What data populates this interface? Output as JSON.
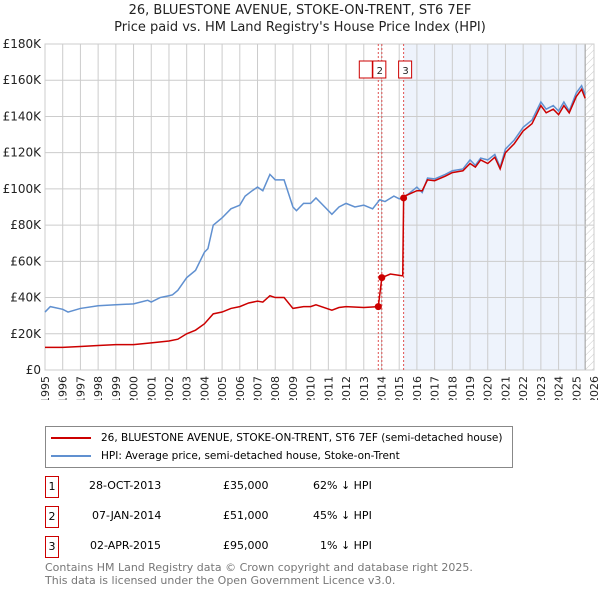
{
  "title": "26, BLUESTONE AVENUE, STOKE-ON-TRENT, ST6 7EF",
  "subtitle": "Price paid vs. HM Land Registry's House Price Index (HPI)",
  "colors": {
    "property": "#cc0000",
    "hpi": "#6090d0",
    "shade": "#eef3fc"
  },
  "chart_data": {
    "type": "line",
    "xlim": [
      1995,
      2026
    ],
    "ylim": [
      0,
      180000
    ],
    "yticks": [
      {
        "v": 0,
        "label": "£0"
      },
      {
        "v": 20000,
        "label": "£20K"
      },
      {
        "v": 40000,
        "label": "£40K"
      },
      {
        "v": 60000,
        "label": "£60K"
      },
      {
        "v": 80000,
        "label": "£80K"
      },
      {
        "v": 100000,
        "label": "£100K"
      },
      {
        "v": 120000,
        "label": "£120K"
      },
      {
        "v": 140000,
        "label": "£140K"
      },
      {
        "v": 160000,
        "label": "£160K"
      },
      {
        "v": 180000,
        "label": "£180K"
      }
    ],
    "xticks": [
      "1995",
      "1996",
      "1997",
      "1998",
      "1999",
      "2000",
      "2001",
      "2002",
      "2003",
      "2004",
      "2005",
      "2006",
      "2007",
      "2008",
      "2009",
      "2010",
      "2011",
      "2012",
      "2013",
      "2014",
      "2015",
      "2016",
      "2017",
      "2018",
      "2019",
      "2020",
      "2021",
      "2022",
      "2023",
      "2024",
      "2025",
      "2026"
    ],
    "shaded_from": 2015.25,
    "hatched_from": 2025.5,
    "series": [
      {
        "name": "HPI: Average price, semi-detached house, Stoke-on-Trent",
        "color": "#6090d0",
        "points": [
          [
            1995,
            32
          ],
          [
            1995.3,
            35
          ],
          [
            1996,
            33.5
          ],
          [
            1996.3,
            32
          ],
          [
            1997,
            34
          ],
          [
            1998,
            35.5
          ],
          [
            1999,
            36
          ],
          [
            2000,
            36.5
          ],
          [
            2000.8,
            38.5
          ],
          [
            2001,
            37.5
          ],
          [
            2001.5,
            40
          ],
          [
            2002,
            41
          ],
          [
            2002.2,
            41.5
          ],
          [
            2002.5,
            44
          ],
          [
            2003,
            51
          ],
          [
            2003.5,
            55
          ],
          [
            2004,
            65
          ],
          [
            2004.2,
            67
          ],
          [
            2004.5,
            80
          ],
          [
            2005,
            84
          ],
          [
            2005.5,
            89
          ],
          [
            2006,
            91
          ],
          [
            2006.3,
            96
          ],
          [
            2006.7,
            99
          ],
          [
            2007,
            101
          ],
          [
            2007.3,
            99
          ],
          [
            2007.7,
            108
          ],
          [
            2008,
            105
          ],
          [
            2008.5,
            105
          ],
          [
            2009,
            90
          ],
          [
            2009.2,
            88
          ],
          [
            2009.6,
            92
          ],
          [
            2010,
            92
          ],
          [
            2010.3,
            95
          ],
          [
            2010.8,
            90
          ],
          [
            2011.2,
            86
          ],
          [
            2011.6,
            90
          ],
          [
            2012,
            92
          ],
          [
            2012.5,
            90
          ],
          [
            2013,
            91
          ],
          [
            2013.5,
            89
          ],
          [
            2013.9,
            94
          ],
          [
            2014.2,
            93
          ],
          [
            2014.7,
            96
          ],
          [
            2015,
            94.5
          ],
          [
            2015.3,
            95.5
          ],
          [
            2016,
            101
          ],
          [
            2016.3,
            98
          ],
          [
            2016.6,
            106
          ],
          [
            2017,
            105.5
          ],
          [
            2017.6,
            108
          ],
          [
            2018,
            110
          ],
          [
            2018.6,
            111
          ],
          [
            2019,
            116
          ],
          [
            2019.3,
            113
          ],
          [
            2019.6,
            117
          ],
          [
            2020,
            116
          ],
          [
            2020.4,
            119
          ],
          [
            2020.7,
            112
          ],
          [
            2021,
            122
          ],
          [
            2021.5,
            127
          ],
          [
            2022,
            134
          ],
          [
            2022.5,
            138
          ],
          [
            2023,
            148
          ],
          [
            2023.3,
            144
          ],
          [
            2023.7,
            146
          ],
          [
            2024,
            143
          ],
          [
            2024.3,
            148
          ],
          [
            2024.6,
            143
          ],
          [
            2025,
            153
          ],
          [
            2025.3,
            157
          ],
          [
            2025.5,
            152
          ]
        ]
      },
      {
        "name": "26, BLUESTONE AVENUE, STOKE-ON-TRENT, ST6 7EF (semi-detached house)",
        "color": "#cc0000",
        "points": [
          [
            1995,
            12.5
          ],
          [
            1996,
            12.5
          ],
          [
            1997,
            13
          ],
          [
            1998,
            13.5
          ],
          [
            1999,
            14
          ],
          [
            2000,
            14
          ],
          [
            2001,
            15
          ],
          [
            2002,
            16
          ],
          [
            2002.5,
            17
          ],
          [
            2003,
            20
          ],
          [
            2003.5,
            22
          ],
          [
            2004,
            25.5
          ],
          [
            2004.5,
            31
          ],
          [
            2005,
            32
          ],
          [
            2005.5,
            34
          ],
          [
            2006,
            35
          ],
          [
            2006.5,
            37
          ],
          [
            2007,
            38
          ],
          [
            2007.3,
            37.5
          ],
          [
            2007.7,
            41
          ],
          [
            2008,
            40
          ],
          [
            2008.5,
            40
          ],
          [
            2009,
            34
          ],
          [
            2009.6,
            35
          ],
          [
            2010,
            35
          ],
          [
            2010.3,
            36
          ],
          [
            2011.2,
            33
          ],
          [
            2011.6,
            34.5
          ],
          [
            2012,
            35
          ],
          [
            2013,
            34.5
          ],
          [
            2013.82,
            35
          ],
          [
            2014.02,
            51
          ],
          [
            2014.5,
            53
          ],
          [
            2015.2,
            52
          ],
          [
            2015.25,
            95
          ],
          [
            2015.3,
            96
          ],
          [
            2016,
            99
          ],
          [
            2016.3,
            99
          ],
          [
            2016.6,
            105
          ],
          [
            2017,
            104.5
          ],
          [
            2017.6,
            107
          ],
          [
            2018,
            109
          ],
          [
            2018.6,
            110
          ],
          [
            2019,
            114
          ],
          [
            2019.3,
            112
          ],
          [
            2019.6,
            116
          ],
          [
            2020,
            114
          ],
          [
            2020.4,
            117.5
          ],
          [
            2020.7,
            111
          ],
          [
            2021,
            120
          ],
          [
            2021.5,
            125
          ],
          [
            2022,
            132
          ],
          [
            2022.5,
            136
          ],
          [
            2023,
            146
          ],
          [
            2023.3,
            142
          ],
          [
            2023.7,
            144
          ],
          [
            2024,
            141
          ],
          [
            2024.3,
            146
          ],
          [
            2024.6,
            142
          ],
          [
            2025,
            151
          ],
          [
            2025.3,
            155
          ],
          [
            2025.5,
            150
          ]
        ]
      }
    ],
    "y_unit_multiplier": 1000,
    "sales": [
      {
        "id": "1",
        "x": 2013.82,
        "y": 35000
      },
      {
        "id": "2",
        "x": 2014.02,
        "y": 51000
      },
      {
        "id": "3",
        "x": 2015.25,
        "y": 95000
      }
    ]
  },
  "legend": {
    "property": "26, BLUESTONE AVENUE, STOKE-ON-TRENT, ST6 7EF (semi-detached house)",
    "hpi": "HPI: Average price, semi-detached house, Stoke-on-Trent"
  },
  "transactions": [
    {
      "id": "1",
      "date": "28-OCT-2013",
      "price": "£35,000",
      "hpi": "62% ↓ HPI"
    },
    {
      "id": "2",
      "date": "07-JAN-2014",
      "price": "£51,000",
      "hpi": "45% ↓ HPI"
    },
    {
      "id": "3",
      "date": "02-APR-2015",
      "price": "£95,000",
      "hpi": "1% ↓ HPI"
    }
  ],
  "footer": [
    "Contains HM Land Registry data © Crown copyright and database right 2025.",
    "This data is licensed under the Open Government Licence v3.0."
  ]
}
